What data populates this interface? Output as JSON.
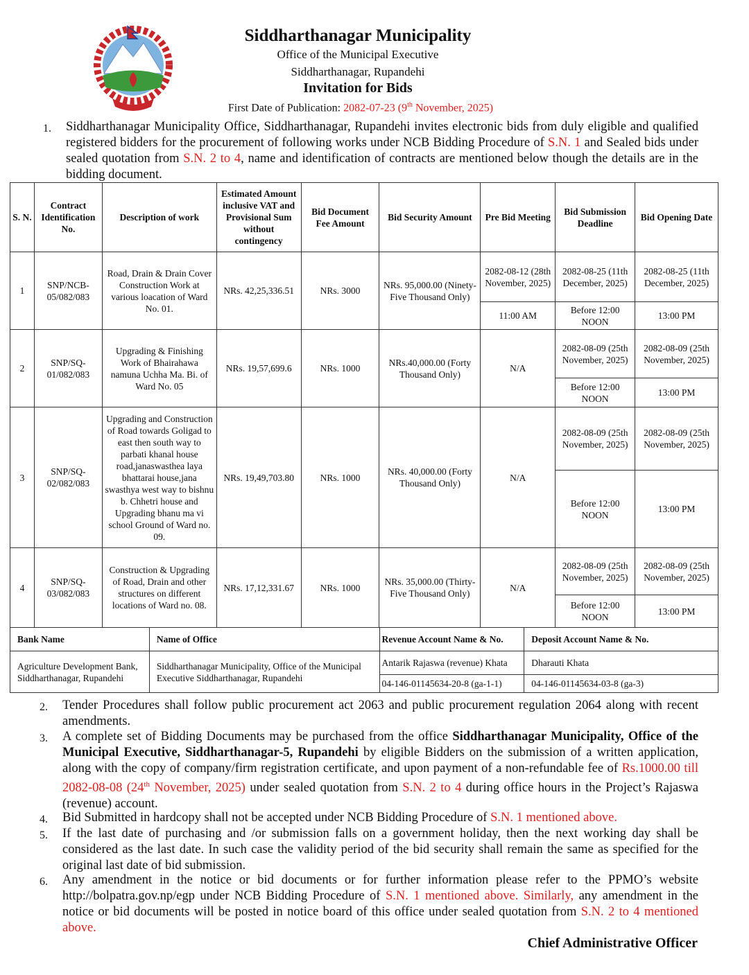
{
  "header": {
    "title": "Siddharthanagar Municipality",
    "office": "Office of the Municipal Executive",
    "address": "Siddharthanagar, Rupandehi",
    "notice_title": "Invitation for Bids",
    "publication_label": "First Date of Publication: ",
    "publication_date_bs": "2082-07-23 (9",
    "publication_sup": "th",
    "publication_date_ad": " November, 2025)"
  },
  "logo": {
    "emblem_text": "जननी जन्मभूमिश्च स्वर्गादपि गरीयसी"
  },
  "colors": {
    "highlight": "#e0201f",
    "text": "#111111"
  },
  "para1": {
    "number": "1.",
    "segments": [
      {
        "t": "Siddharthanagar Municipality Office, Siddharthanagar, Rupandehi invites electronic bids from duly eligible and qualified registered bidders for the procurement of following works under NCB Bidding Procedure of "
      },
      {
        "t": "S.N. 1",
        "c": "r"
      },
      {
        "t": " and Sealed bids under sealed quotation from "
      },
      {
        "t": "S.N. 2 to 4",
        "c": "r"
      },
      {
        "t": ", name and identification of contracts are mentioned below though the details are in the bidding document."
      }
    ]
  },
  "table": {
    "headers": [
      "S. N.",
      "Contract Identification No.",
      "Description of work",
      "Estimated Amount inclusive VAT and Provisional Sum without contingency",
      "Bid Document Fee Amount",
      "Bid Security Amount",
      "Pre Bid Meeting",
      "Bid Submission Deadline",
      "Bid Opening Date"
    ],
    "rows": [
      {
        "sn": "1",
        "id": "SNP/NCB-05/082/083",
        "desc": "Road, Drain & Drain Cover Construction Work at various loacation of Ward No. 01.",
        "amount": "NRs. 42,25,336.51",
        "fee": "NRs. 3000",
        "security": "NRs. 95,000.00 (Ninety-Five Thousand Only)",
        "prebid_date": "2082-08-12 (28th November, 2025)",
        "prebid_time": "11:00 AM",
        "sub_date": "2082-08-25 (11th December, 2025)",
        "sub_time": "Before 12:00 NOON",
        "open_date": "2082-08-25 (11th December, 2025)",
        "open_time": "13:00 PM"
      },
      {
        "sn": "2",
        "id": "SNP/SQ-01/082/083",
        "desc": "Upgrading & Finishing Work of Bhairahawa namuna Uchha Ma. Bi. of Ward No. 05",
        "amount": "NRs. 19,57,699.6",
        "fee": "NRs. 1000",
        "security": "NRs.40,000.00 (Forty Thousand Only)",
        "prebid": "N/A",
        "sub_date": "2082-08-09 (25th November, 2025)",
        "sub_time": "Before 12:00 NOON",
        "open_date": "2082-08-09 (25th November, 2025)",
        "open_time": "13:00 PM"
      },
      {
        "sn": "3",
        "id": "SNP/SQ-02/082/083",
        "desc": "Upgrading and Construction of Road towards Goligad to east then south way to parbati khanal house road,janaswasthea laya bhattarai house,jana swasthya west way to bishnu b.  Chhetri house and Upgrading bhanu ma vi school Ground of Ward no. 09.",
        "amount": "NRs. 19,49,703.80",
        "fee": "NRs. 1000",
        "security": "NRs. 40,000.00 (Forty Thousand Only)",
        "prebid": "N/A",
        "sub_date": "2082-08-09 (25th November, 2025)",
        "sub_time": "Before 12:00 NOON",
        "open_date": "2082-08-09 (25th November, 2025)",
        "open_time": "13:00 PM"
      },
      {
        "sn": "4",
        "id": "SNP/SQ-03/082/083",
        "desc": "Construction & Upgrading of Road, Drain and other structures  on different locations of Ward no. 08.",
        "amount": "NRs. 17,12,331.67",
        "fee": "NRs. 1000",
        "security": "NRs. 35,000.00 (Thirty-Five Thousand Only)",
        "prebid": "N/A",
        "sub_date": "2082-08-09 (25th November, 2025)",
        "sub_time": "Before 12:00 NOON",
        "open_date": "2082-08-09 (25th November, 2025)",
        "open_time": "13:00 PM"
      }
    ]
  },
  "bank": {
    "headers": [
      "Bank Name",
      "Name of Office",
      "Revenue Account Name & No.",
      "Deposit Account Name & No."
    ],
    "bank_name": "Agriculture Development Bank, Siddharthanagar, Rupandehi",
    "office_name": "Siddharthanagar Municipality, Office of the Municipal Executive Siddharthanagar, Rupandehi",
    "revenue_name": "Antarik Rajaswa (revenue) Khata",
    "revenue_no": "04-146-01145634-20-8 (ga-1-1)",
    "deposit_name": "Dharauti Khata",
    "deposit_no": "04-146-01145634-03-8 (ga-3)"
  },
  "paras": [
    {
      "number": "2.",
      "segments": [
        {
          "t": "Tender Procedures shall follow public procurement act 2063 and public procurement regulation 2064 along with recent amendments."
        }
      ]
    },
    {
      "number": "3.",
      "segments": [
        {
          "t": "A complete set of Bidding Documents may be purchased from the office "
        },
        {
          "t": "Siddharthanagar Municipality, Office of the Municipal Executive, Siddharthanagar-5, Rupandehi",
          "c": "b"
        },
        {
          "t": " by eligible Bidders on the submission of a written application, along with the copy of company/firm registration certificate, and upon payment of a non-refundable fee of "
        },
        {
          "t": "Rs.1000.00 till 2082-08-08 (24",
          "c": "r"
        },
        {
          "t": "th",
          "c": "rsup"
        },
        {
          "t": " November, 2025)",
          "c": "r"
        },
        {
          "t": " under sealed quotation from "
        },
        {
          "t": "S.N. 2 to 4",
          "c": "r"
        },
        {
          "t": " during office hours in the Project’s Rajaswa (revenue) account."
        }
      ]
    },
    {
      "number": "4.",
      "segments": [
        {
          "t": "Bid Submitted in hardcopy shall not be accepted under NCB Bidding Procedure of "
        },
        {
          "t": "S.N. 1 mentioned above.",
          "c": "r"
        }
      ]
    },
    {
      "number": "5.",
      "segments": [
        {
          "t": "If the last date of purchasing and /or submission falls on a government holiday, then the next working day shall be considered as the last date. In such case the validity period of the bid security shall remain the same as specified for the original last date of bid submission."
        }
      ]
    },
    {
      "number": "6.",
      "segments": [
        {
          "t": "Any amendment in the notice or bid documents or for further information please refer to the PPMO’s website http://bolpatra.gov.np/egp under NCB Bidding Procedure of "
        },
        {
          "t": "S.N. 1 mentioned above. Similarly,",
          "c": "r"
        },
        {
          "t": " any amendment in the notice or bid documents will be posted in notice board of this office under sealed quotation from "
        },
        {
          "t": "S.N. 2 to 4 mentioned above.",
          "c": "r"
        }
      ]
    }
  ],
  "signature": "Chief Administrative Officer"
}
